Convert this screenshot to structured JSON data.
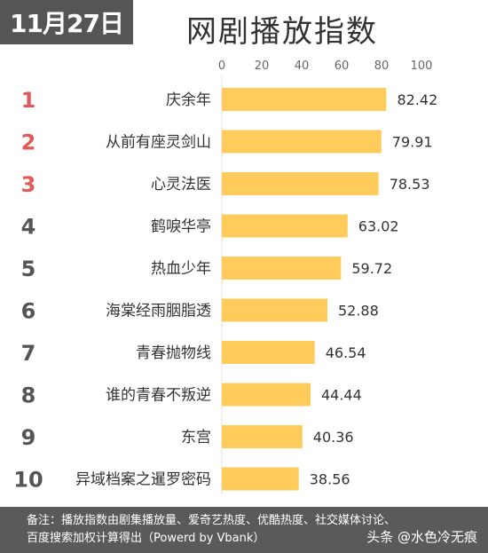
{
  "date_badge": "11月27日",
  "title": "网剧播放指数",
  "footer": {
    "note_line1": "备注：播放指数由剧集播放量、爱奇艺热度、优酷热度、社交媒体讨论、",
    "note_line2": "百度搜索加权计算得出（Powerd by Vbank）",
    "watermark": "头条 @水色冷无痕"
  },
  "colors": {
    "bar": "#FFCC5C",
    "rank_top": "#E05A5A",
    "rank_other": "#555555",
    "label": "#333333",
    "axis_text": "#666666"
  },
  "chart_data": {
    "type": "bar",
    "orientation": "horizontal",
    "title": "网剧播放指数",
    "xlim": [
      0,
      100
    ],
    "x_ticks": [
      0,
      20,
      40,
      60,
      80,
      100
    ],
    "ranks": [
      "1",
      "2",
      "3",
      "4",
      "5",
      "6",
      "7",
      "8",
      "9",
      "10"
    ],
    "categories": [
      "庆余年",
      "从前有座灵剑山",
      "心灵法医",
      "鹤唳华亭",
      "热血少年",
      "海棠经雨胭脂透",
      "青春抛物线",
      "谁的青春不叛逆",
      "东宫",
      "异域档案之暹罗密码"
    ],
    "values": [
      82.42,
      79.91,
      78.53,
      63.02,
      59.72,
      52.88,
      46.54,
      44.44,
      40.36,
      38.56
    ],
    "value_labels": [
      "82.42",
      "79.91",
      "78.53",
      "63.02",
      "59.72",
      "52.88",
      "46.54",
      "44.44",
      "40.36",
      "38.56"
    ]
  }
}
